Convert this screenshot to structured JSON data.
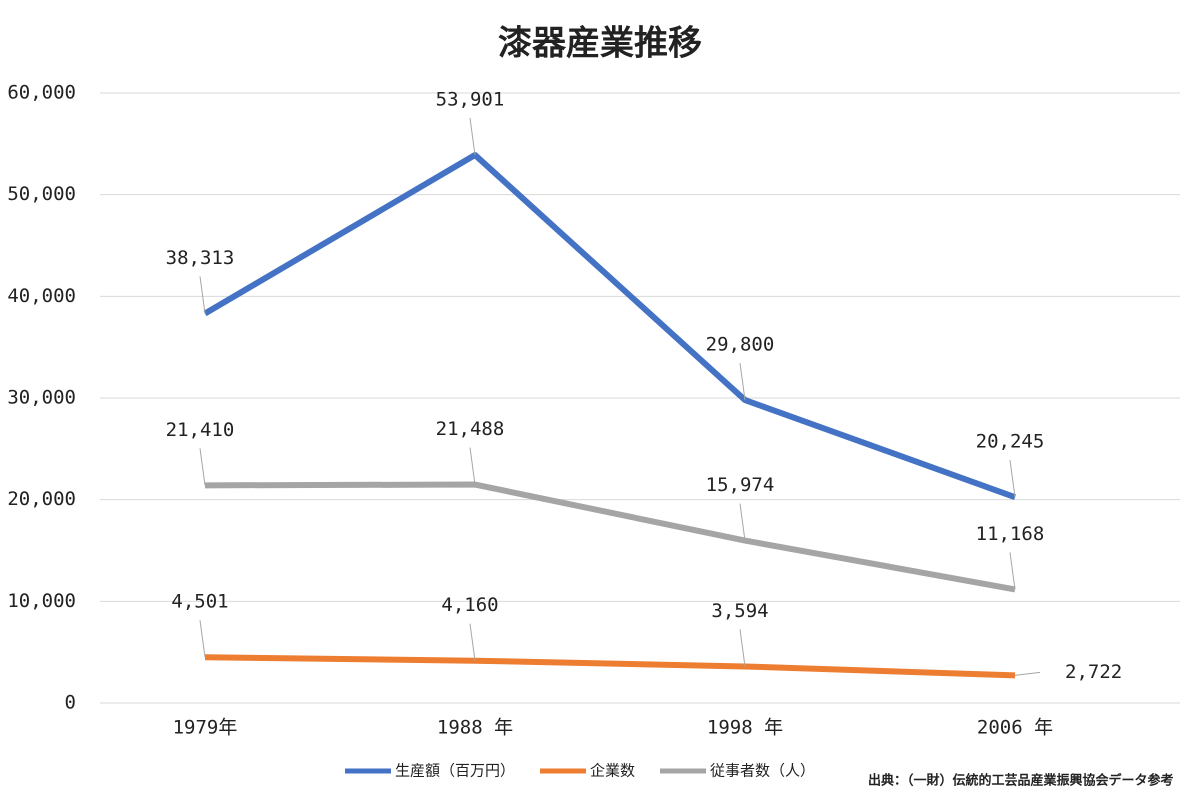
{
  "chart_data": {
    "type": "line",
    "title": "漆器産業推移",
    "categories": [
      "1979年",
      "1988 年",
      "1998 年",
      "2006 年"
    ],
    "series": [
      {
        "name": "生産額（百万円）",
        "color": "#4472c4",
        "values": [
          38313,
          53901,
          29800,
          20245
        ],
        "value_labels": [
          "38,313",
          "53,901",
          "29,800",
          "20,245"
        ]
      },
      {
        "name": "企業数",
        "color": "#ed7d31",
        "values": [
          4501,
          4160,
          3594,
          2722
        ],
        "value_labels": [
          "4,501",
          "4,160",
          "3,594",
          "2,722"
        ]
      },
      {
        "name": "従事者数（人）",
        "color": "#a5a5a5",
        "values": [
          21410,
          21488,
          15974,
          11168
        ],
        "value_labels": [
          "21,410",
          "21,488",
          "15,974",
          "11,168"
        ]
      }
    ],
    "ylim": [
      0,
      60000
    ],
    "yticks": [
      0,
      {
        "value": 10000,
        "label": "10,000"
      },
      {
        "value": 20000,
        "label": "20,000"
      },
      {
        "value": 30000,
        "label": "30,000"
      },
      {
        "value": 40000,
        "label": "40,000"
      },
      {
        "value": 50000,
        "label": "50,000"
      },
      {
        "value": 60000,
        "label": "60,000"
      }
    ],
    "grid": true,
    "source": "出典：（一財）伝統的工芸品産業振興協会データ参考"
  }
}
